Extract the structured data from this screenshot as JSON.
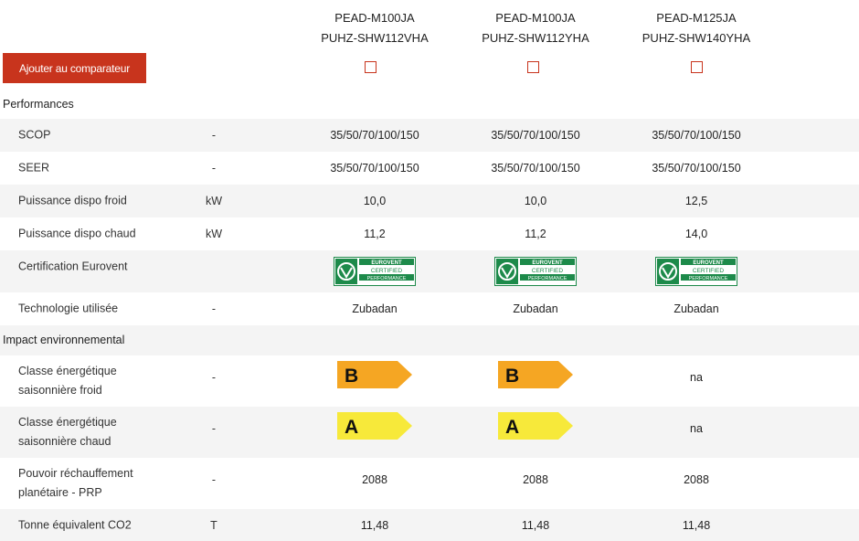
{
  "models": [
    {
      "line1": "PEAD-M100JA",
      "line2": "PUHZ-SHW112VHA"
    },
    {
      "line1": "PEAD-M100JA",
      "line2": "PUHZ-SHW112YHA"
    },
    {
      "line1": "PEAD-M125JA",
      "line2": "PUHZ-SHW140YHA"
    }
  ],
  "compare_button": "Ajouter au comparateur",
  "sections": {
    "performances": "Performances",
    "impact": "Impact environnemental"
  },
  "rows": {
    "scop": {
      "label": "SCOP",
      "unit": "-",
      "values": [
        "35/50/70/100/150",
        "35/50/70/100/150",
        "35/50/70/100/150"
      ]
    },
    "seer": {
      "label": "SEER",
      "unit": "-",
      "values": [
        "35/50/70/100/150",
        "35/50/70/100/150",
        "35/50/70/100/150"
      ]
    },
    "froid": {
      "label": "Puissance dispo froid",
      "unit": "kW",
      "values": [
        "10,0",
        "10,0",
        "12,5"
      ]
    },
    "chaud": {
      "label": "Puissance dispo chaud",
      "unit": "kW",
      "values": [
        "11,2",
        "11,2",
        "14,0"
      ]
    },
    "eurovent": {
      "label": "Certification Eurovent",
      "badge_line1": "EUROVENT",
      "badge_line2": "CERTIFIED",
      "badge_line3": "PERFORMANCE"
    },
    "techno": {
      "label": "Technologie utilisée",
      "unit": "-",
      "values": [
        "Zubadan",
        "Zubadan",
        "Zubadan"
      ]
    },
    "classe_froid": {
      "label_line1": "Classe énergétique",
      "label_line2": "saisonnière froid",
      "unit": "-",
      "values": [
        "B",
        "B",
        "na"
      ]
    },
    "classe_chaud": {
      "label_line1": "Classe énergétique",
      "label_line2": "saisonnière chaud",
      "unit": "-",
      "values": [
        "A",
        "A",
        "na"
      ]
    },
    "prp": {
      "label_line1": "Pouvoir réchauffement",
      "label_line2": "planétaire - PRP",
      "unit": "-",
      "values": [
        "2088",
        "2088",
        "2088"
      ]
    },
    "co2": {
      "label": "Tonne équivalent CO2",
      "unit": "T",
      "values": [
        "11,48",
        "11,48",
        "11,48"
      ]
    }
  },
  "colors": {
    "accent": "#c8341d",
    "class_b": "#f5a623",
    "class_a": "#f7e93a",
    "eurovent_green": "#1d8a4a"
  }
}
